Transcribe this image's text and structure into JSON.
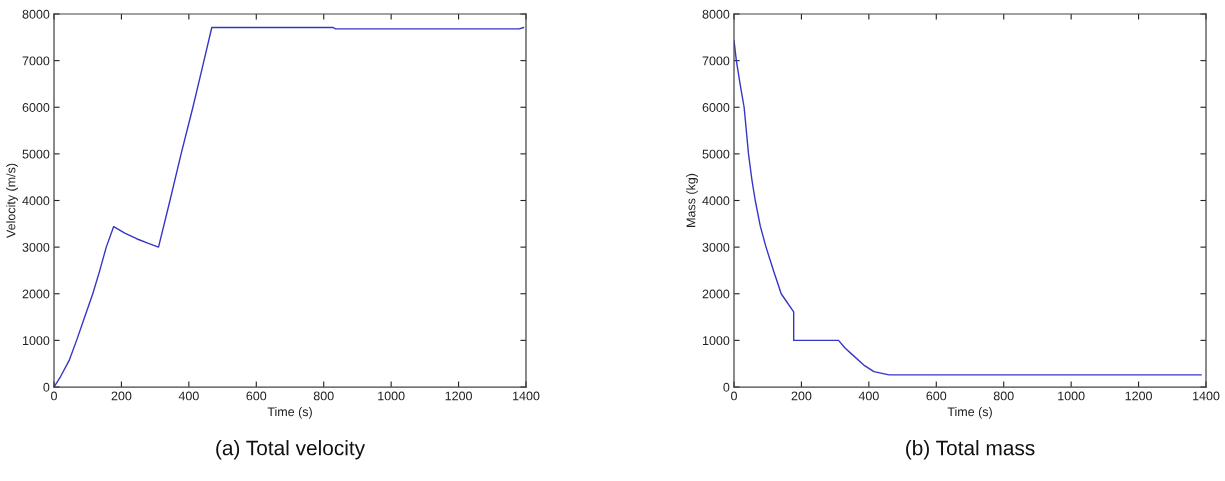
{
  "chart_data": [
    {
      "type": "line",
      "title": "(a) Total velocity",
      "xlabel": "Time (s)",
      "ylabel": "Velocity (m/s)",
      "color": "#3535c8",
      "x": [
        0,
        20,
        45,
        67,
        90,
        115,
        135,
        155,
        177,
        210,
        245,
        280,
        310,
        344,
        377,
        412,
        440,
        468,
        828,
        835,
        1380,
        1393
      ],
      "values": [
        0,
        230,
        570,
        1000,
        1480,
        2000,
        2480,
        3000,
        3440,
        3300,
        3180,
        3080,
        3000,
        4000,
        5000,
        6000,
        6850,
        7710,
        7710,
        7680,
        7680,
        7710
      ],
      "xlim": [
        0,
        1400
      ],
      "ylim": [
        0,
        8000
      ],
      "xticks": [
        0,
        200,
        400,
        600,
        800,
        1000,
        1200,
        1400
      ],
      "yticks": [
        0,
        1000,
        2000,
        3000,
        4000,
        5000,
        6000,
        7000,
        8000
      ]
    },
    {
      "type": "line",
      "title": "(b) Total mass",
      "xlabel": "Time (s)",
      "ylabel": "Mass (kg)",
      "color": "#3535c8",
      "x": [
        0,
        7,
        18,
        30,
        43,
        53,
        63,
        78,
        95,
        117,
        140,
        177,
        177,
        310,
        330,
        350,
        385,
        415,
        460,
        1386
      ],
      "values": [
        7430,
        7000,
        6500,
        6000,
        5000,
        4450,
        4000,
        3450,
        3000,
        2500,
        2000,
        1610,
        1000,
        1000,
        830,
        700,
        470,
        330,
        260,
        260
      ],
      "xlim": [
        0,
        1400
      ],
      "ylim": [
        0,
        8000
      ],
      "xticks": [
        0,
        200,
        400,
        600,
        800,
        1000,
        1200,
        1400
      ],
      "yticks": [
        0,
        1000,
        2000,
        3000,
        4000,
        5000,
        6000,
        7000,
        8000
      ]
    }
  ]
}
